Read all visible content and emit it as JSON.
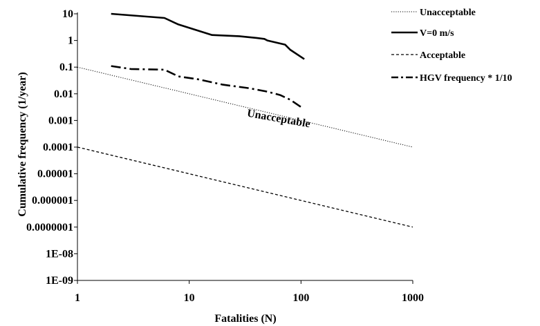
{
  "chart_data": {
    "type": "line",
    "title": "",
    "xlabel": "Fatalities (N)",
    "ylabel": "Cumulative frequency (1/year)",
    "xscale": "log",
    "yscale": "log",
    "xlim": [
      1,
      1000
    ],
    "ylim": [
      1e-09,
      10
    ],
    "x_ticks": [
      1,
      10,
      100,
      1000
    ],
    "x_tick_labels": [
      "1",
      "10",
      "100",
      "1000"
    ],
    "y_ticks": [
      1e-09,
      1e-08,
      1e-07,
      1e-06,
      1e-05,
      0.0001,
      0.001,
      0.01,
      0.1,
      1,
      10
    ],
    "y_tick_labels": [
      "1E-09",
      "1E-08",
      "0.0000001",
      "0.000001",
      "0.00001",
      "0.0001",
      "0.001",
      "0.01",
      "0.1",
      "1",
      "10"
    ],
    "grid": false,
    "legend_position": "right",
    "series": [
      {
        "name": "Unacceptable",
        "style": "dotted",
        "color": "#000000",
        "x": [
          1,
          1000
        ],
        "y": [
          0.1,
          0.0001
        ]
      },
      {
        "name": "V=0 m/s",
        "style": "solid",
        "color": "#000000",
        "x": [
          2,
          6,
          8,
          16,
          28,
          40,
          47,
          50,
          72,
          80,
          107
        ],
        "y": [
          10,
          7,
          4,
          1.6,
          1.45,
          1.25,
          1.15,
          1.0,
          0.7,
          0.45,
          0.2
        ]
      },
      {
        "name": "Acceptable",
        "style": "dashed",
        "color": "#000000",
        "x": [
          1,
          1000
        ],
        "y": [
          0.0001,
          1e-07
        ]
      },
      {
        "name": "HGV frequency * 1/10",
        "style": "dash-dot",
        "color": "#000000",
        "x": [
          2,
          3,
          6,
          8,
          12,
          20,
          35,
          50,
          65,
          80,
          100
        ],
        "y": [
          0.11,
          0.085,
          0.08,
          0.045,
          0.035,
          0.022,
          0.016,
          0.012,
          0.009,
          0.006,
          0.0032
        ]
      }
    ],
    "annotations": [
      {
        "text": "Unacceptable",
        "x": 50,
        "y": 0.001
      }
    ]
  }
}
